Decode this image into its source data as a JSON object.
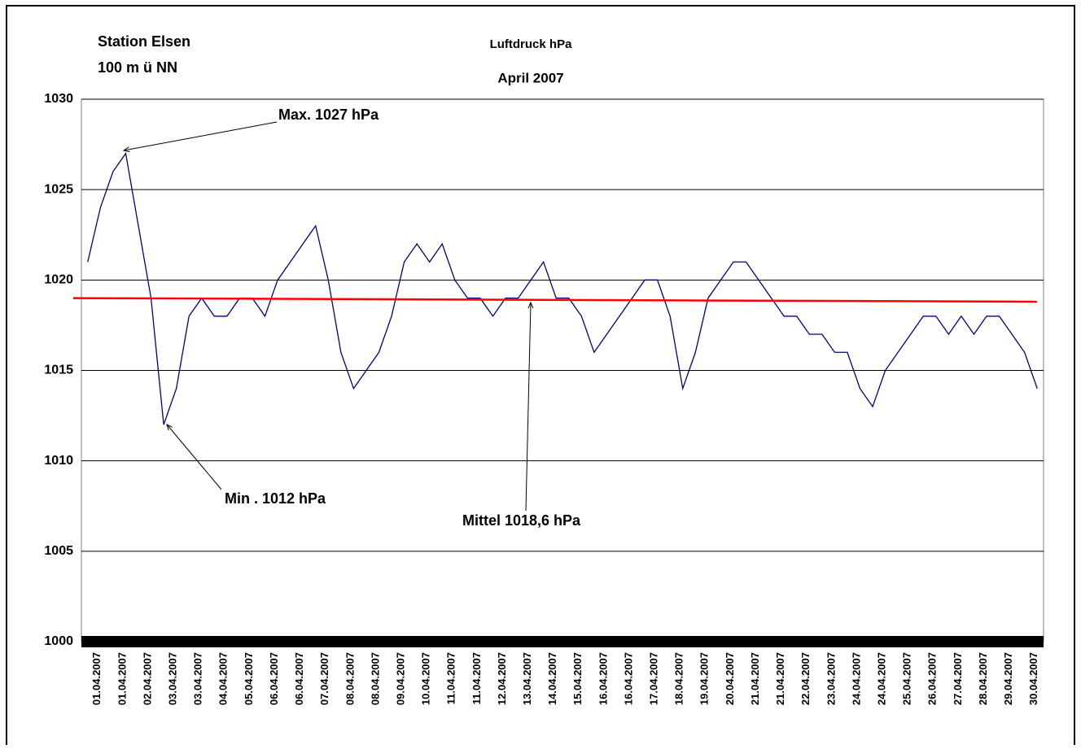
{
  "chart_data": {
    "type": "line",
    "title": "Luftdruck hPa",
    "subtitle": "April 2007",
    "station": [
      "Station Elsen",
      "100 m ü NN"
    ],
    "annotations": [
      "Max. 1027 hPa",
      "Min . 1012 hPa",
      "Mittel 1018,6 hPa"
    ],
    "categories": [
      "01.04.2007",
      null,
      "01.04.2007",
      null,
      "02.04.2007",
      null,
      "03.04.2007",
      null,
      "03.04.2007",
      null,
      "04.04.2007",
      null,
      "05.04.2007",
      null,
      "06.04.2007",
      null,
      "06.04.2007",
      null,
      "07.04.2007",
      null,
      "08.04.2007",
      null,
      "08.04.2007",
      null,
      "09.04.2007",
      null,
      "10.04.2007",
      null,
      "11.04.2007",
      null,
      "11.04.2007",
      null,
      "12.04.2007",
      null,
      "13.04.2007",
      null,
      "14.04.2007",
      null,
      "15.04.2007",
      null,
      "16.04.2007",
      null,
      "16.04.2007",
      null,
      "17.04.2007",
      null,
      "18.04.2007",
      null,
      "19.04.2007",
      null,
      "20.04.2007",
      null,
      "21.04.2007",
      null,
      "21.04.2007",
      null,
      "22.04.2007",
      null,
      "23.04.2007",
      null,
      "24.04.2007",
      null,
      "24.04.2007",
      null,
      "25.04.2007",
      null,
      "26.04.2007",
      null,
      "27.04.2007",
      null,
      "28.04.2007",
      null,
      "29.04.2007",
      null,
      "30.04.2007",
      null
    ],
    "series": [
      {
        "color": "#000080",
        "values": [
          1021,
          1024,
          1026,
          1027,
          1023,
          1019,
          1012,
          1014,
          1018,
          1019,
          1018,
          1018,
          1019,
          1019,
          1018,
          1020,
          1021,
          1022,
          1023,
          1020,
          1016,
          1014,
          1015,
          1016,
          1018,
          1021,
          1022,
          1021,
          1022,
          1020,
          1019,
          1019,
          1018,
          1019,
          1019,
          1020,
          1021,
          1019,
          1019,
          1018,
          1016,
          1017,
          1018,
          1019,
          1020,
          1020,
          1018,
          1014,
          1016,
          1019,
          1020,
          1021,
          1021,
          1020,
          1019,
          1018,
          1018,
          1017,
          1017,
          1016,
          1016,
          1014,
          1013,
          1015,
          1016,
          1017,
          1018,
          1018,
          1017,
          1018,
          1017,
          1018,
          1018,
          1017,
          1016,
          1014
        ]
      }
    ],
    "trendline": {
      "color": "#ff0000",
      "values": [
        1019,
        1018.8
      ]
    },
    "ylim": [
      1000,
      1030
    ],
    "yticks": [
      1000,
      1005,
      1010,
      1015,
      1020,
      1025,
      1030
    ],
    "grid": true
  }
}
